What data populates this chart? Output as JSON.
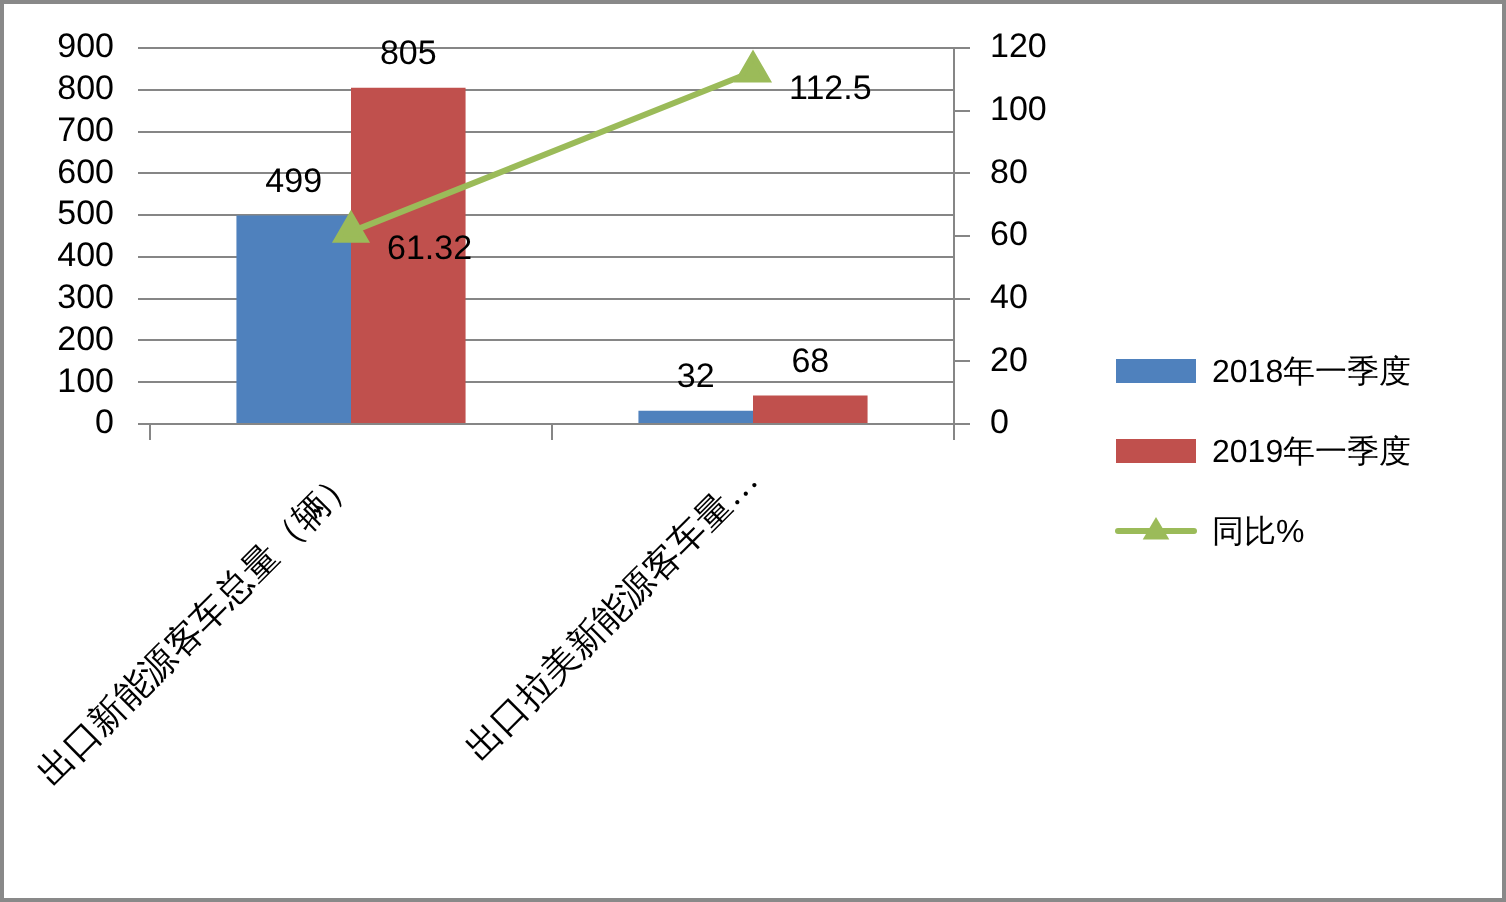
{
  "chart_data": {
    "type": "bar",
    "categories": [
      "出口新能源客车总量（辆）",
      "出口拉美新能源客车量…"
    ],
    "series": [
      {
        "name": "2018年一季度",
        "color": "#4f81bd",
        "values": [
          499,
          32
        ]
      },
      {
        "name": "2019年一季度",
        "color": "#c0504d",
        "values": [
          805,
          68
        ]
      },
      {
        "name": "同比%",
        "type": "line",
        "axis": "y2",
        "color": "#9bbb59",
        "values": [
          61.32,
          112.5
        ]
      }
    ],
    "ylim": [
      0,
      900
    ],
    "yticks": [
      0,
      100,
      200,
      300,
      400,
      500,
      600,
      700,
      800,
      900
    ],
    "y2lim": [
      0,
      120
    ],
    "y2ticks": [
      0,
      20,
      40,
      60,
      80,
      100,
      120
    ],
    "grid": "y",
    "legend": "right",
    "data_labels": true,
    "marker": "triangle"
  }
}
